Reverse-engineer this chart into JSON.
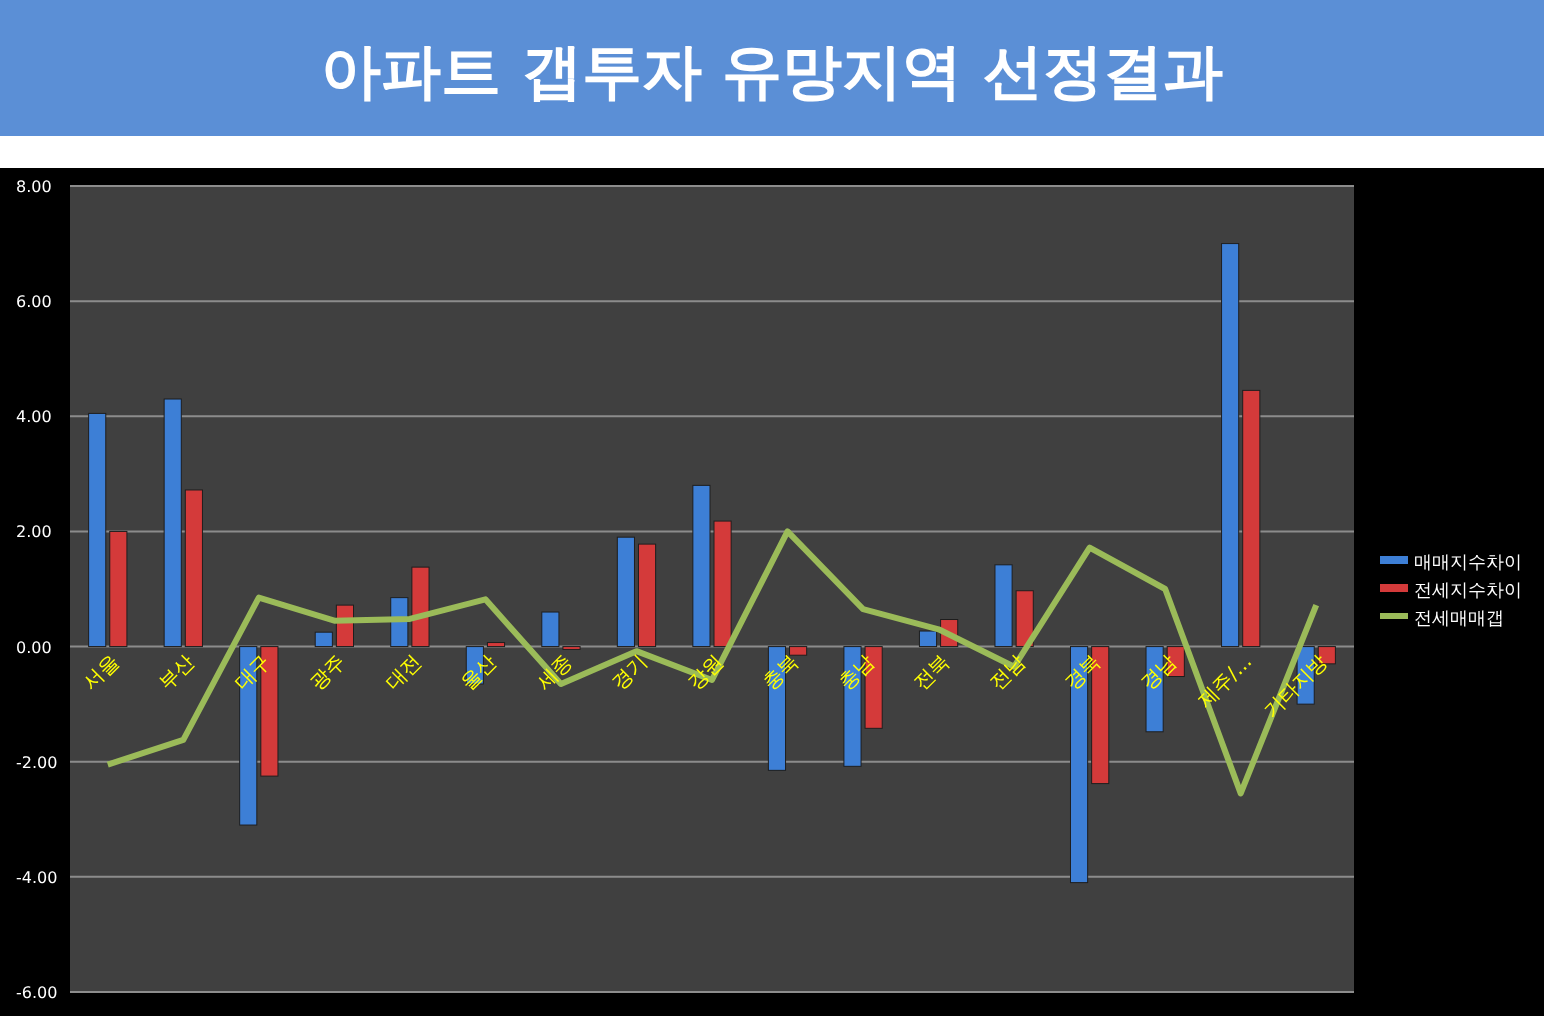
{
  "chart_data": {
    "type": "bar",
    "title": "아파트 갭투자 유망지역 선정결과",
    "categories": [
      "서울",
      "부산",
      "대구",
      "광주",
      "대전",
      "울산",
      "세종",
      "경기",
      "강원",
      "충북",
      "충남",
      "전북",
      "전남",
      "경북",
      "경남",
      "제주/...",
      "기타지방"
    ],
    "series": [
      {
        "name": "매매지수차이",
        "color": "#3d7fd6",
        "values": [
          4.05,
          4.3,
          -3.1,
          0.25,
          0.85,
          -0.65,
          0.6,
          1.9,
          2.8,
          -2.15,
          -2.08,
          0.27,
          1.42,
          -4.1,
          -1.48,
          7.0,
          -1.0
        ]
      },
      {
        "name": "전세지수차이",
        "color": "#d43a3a",
        "values": [
          2.0,
          2.72,
          -2.25,
          0.72,
          1.38,
          0.07,
          -0.05,
          1.78,
          2.18,
          -0.15,
          -1.42,
          0.47,
          0.97,
          -2.38,
          -0.52,
          4.45,
          -0.3
        ]
      },
      {
        "name": "전세매매갭",
        "type": "line",
        "color": "#9bbb59",
        "values": [
          -2.05,
          -1.62,
          0.85,
          0.45,
          0.48,
          0.82,
          -0.65,
          -0.08,
          -0.58,
          2.0,
          0.65,
          0.3,
          -0.35,
          1.72,
          1.0,
          -2.55,
          0.72
        ]
      }
    ],
    "ylim": [
      -6,
      8
    ],
    "yticks": [
      {
        "value": -6,
        "label": "-6.00"
      },
      {
        "value": -4,
        "label": "-4.00"
      },
      {
        "value": -2,
        "label": "-2.00"
      },
      {
        "value": 0,
        "label": "0.00"
      },
      {
        "value": 2,
        "label": "2.00"
      },
      {
        "value": 4,
        "label": "4.00"
      },
      {
        "value": 6,
        "label": "6.00"
      },
      {
        "value": 8,
        "label": "8.00"
      }
    ],
    "grid": "y",
    "legend": "right"
  }
}
